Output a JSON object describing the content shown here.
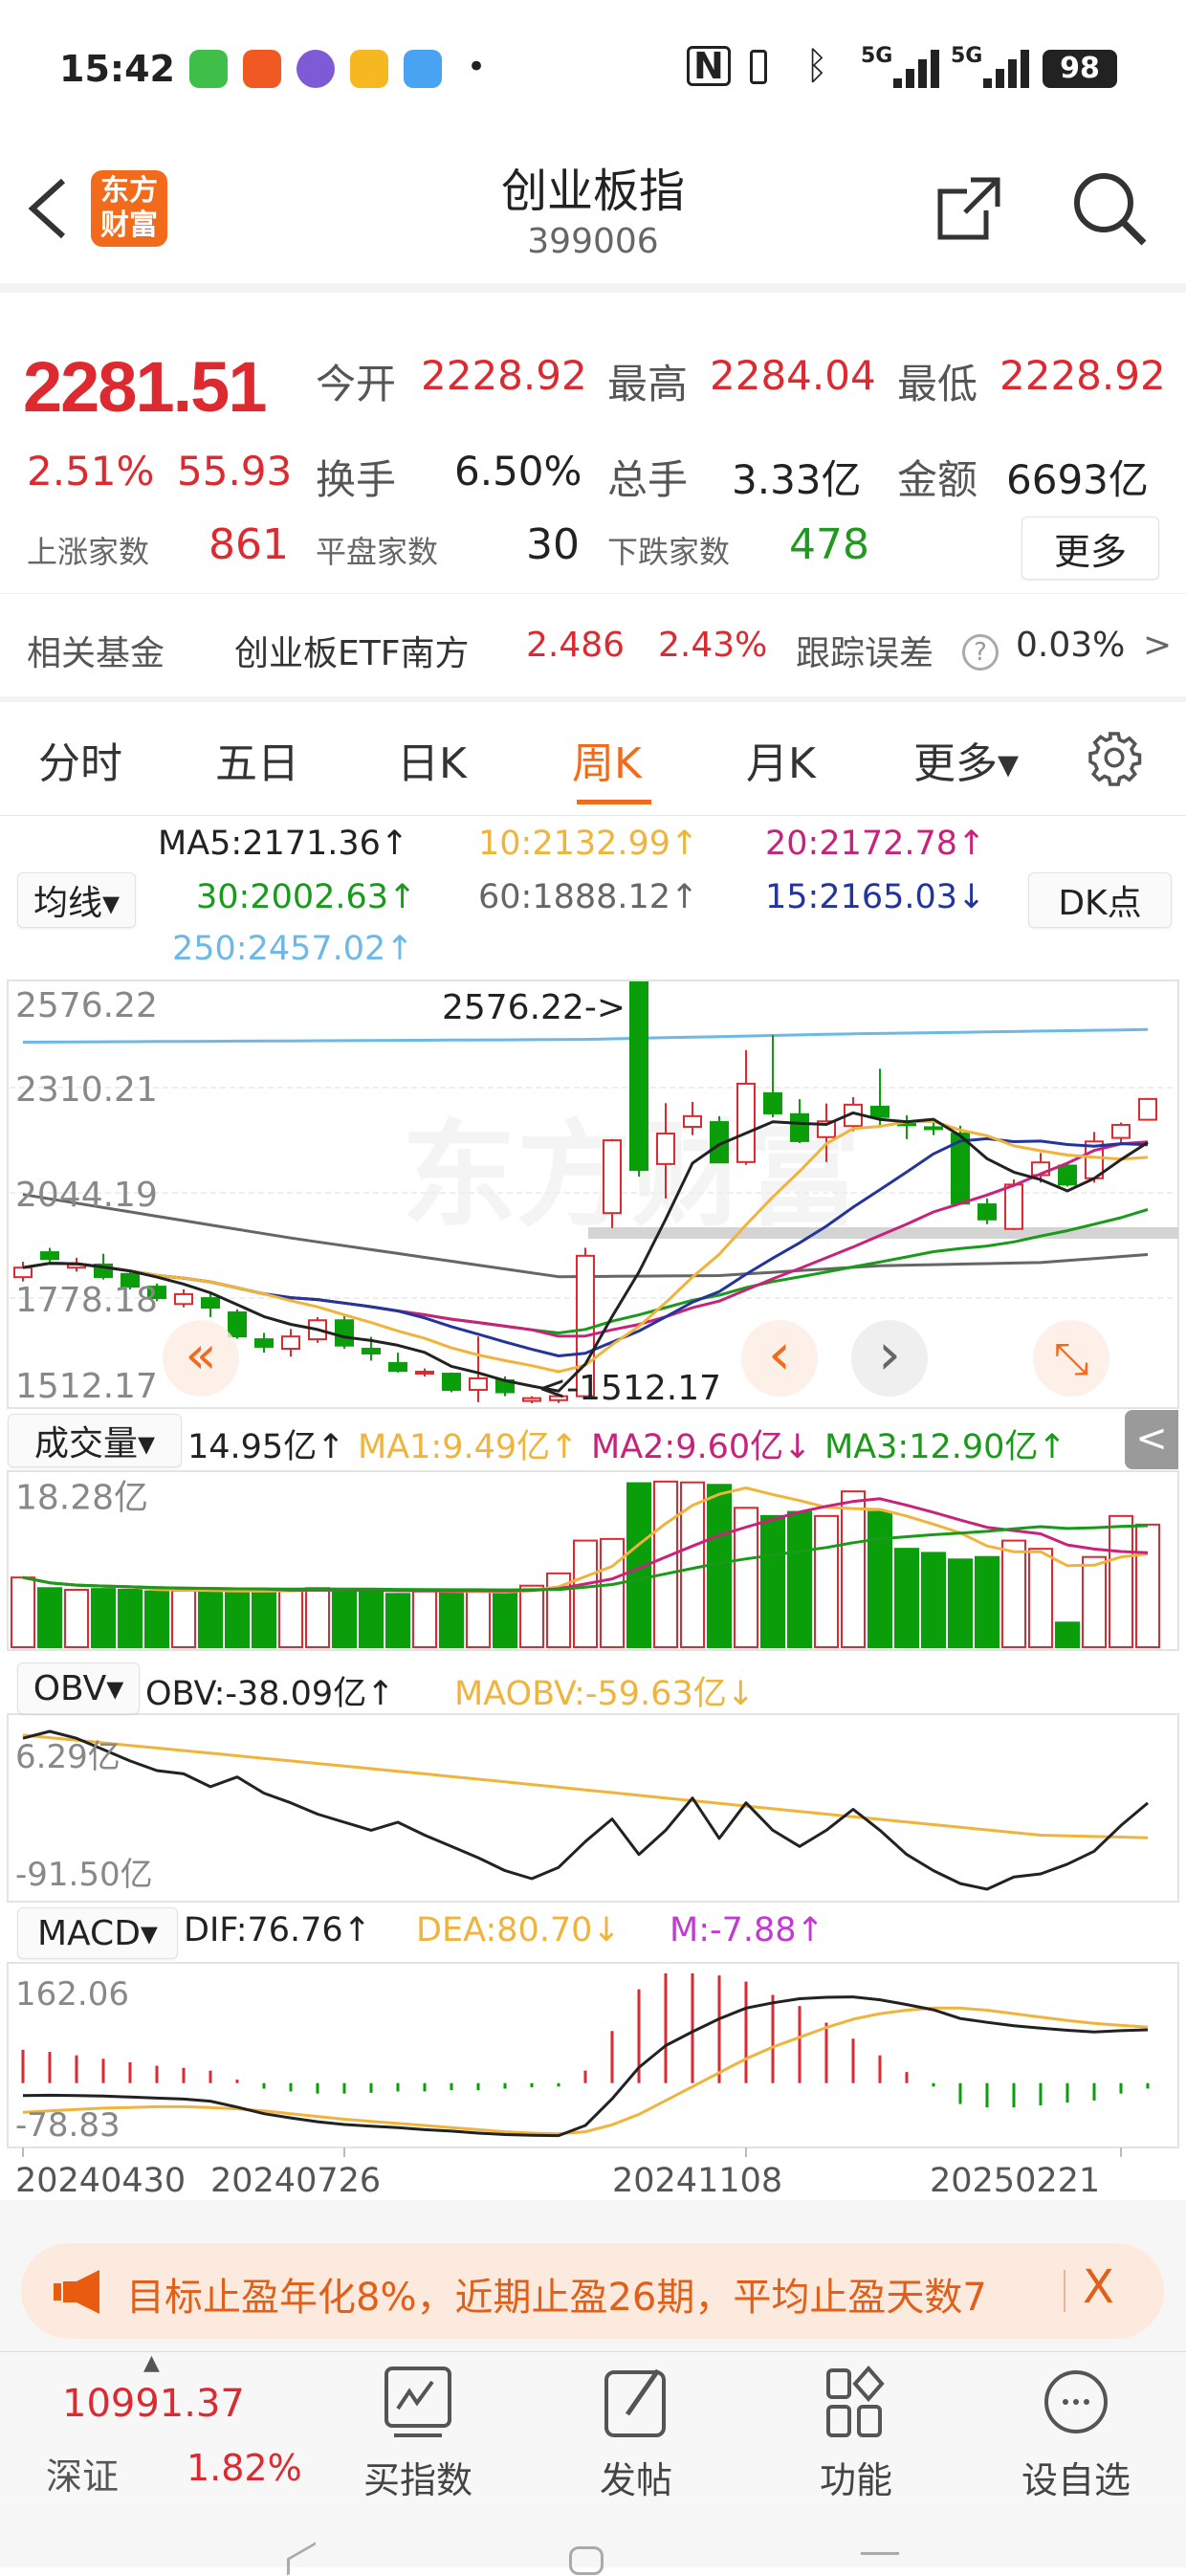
{
  "status_bar": {
    "time": "15:42",
    "network": "5G",
    "network2": "5G",
    "battery": "98",
    "nfc_icon": "N",
    "dot": "•"
  },
  "header": {
    "back_icon": "chevron-left",
    "logo_text": "东方财富",
    "title": "创业板指",
    "code": "399006",
    "share_icon": "share",
    "search_icon": "search"
  },
  "quote": {
    "price": "2281.51",
    "change_pct": "2.51%",
    "change": "55.93",
    "fields": [
      {
        "label": "今开",
        "value": "2228.92"
      },
      {
        "label": "最高",
        "value": "2284.04"
      },
      {
        "label": "最低",
        "value": "2228.92"
      },
      {
        "label": "换手",
        "value": "6.50%"
      },
      {
        "label": "总手",
        "value": "3.33亿"
      },
      {
        "label": "金额",
        "value": "6693亿"
      }
    ],
    "breadth": [
      {
        "label": "上涨家数",
        "value": "861"
      },
      {
        "label": "平盘家数",
        "value": "30"
      },
      {
        "label": "下跌家数",
        "value": "478"
      }
    ],
    "more_button": "更多"
  },
  "fund": {
    "label": "相关基金",
    "name": "创业板ETF南方",
    "price": "2.486",
    "pct": "2.43%",
    "tracking_label": "跟踪误差",
    "help_icon": "?",
    "tracking_value": "0.03%",
    "arrow": ">"
  },
  "tabs": [
    {
      "label": "分时",
      "active": false
    },
    {
      "label": "五日",
      "active": false
    },
    {
      "label": "日K",
      "active": false
    },
    {
      "label": "周K",
      "active": true
    },
    {
      "label": "月K",
      "active": false
    },
    {
      "label": "更多▾",
      "active": false
    }
  ],
  "ma_legend": {
    "selector": "均线▾",
    "dk_button": "DK点",
    "items": [
      {
        "text": "MA5:2171.36↑",
        "color": "#222222"
      },
      {
        "text": "10:2132.99↑",
        "color": "#f0b43c"
      },
      {
        "text": "20:2172.78↑",
        "color": "#c8237c"
      },
      {
        "text": "30:2002.63↑",
        "color": "#1a9a1a"
      },
      {
        "text": "60:1888.12↑",
        "color": "#666666"
      },
      {
        "text": "15:2165.03↓",
        "color": "#23359c"
      },
      {
        "text": "250:2457.02↑",
        "color": "#6cb8e6"
      }
    ]
  },
  "volume_legend": {
    "selector": "成交量▾",
    "value": "14.95亿↑",
    "ma1": "MA1:9.49亿↑",
    "ma2": "MA2:9.60亿↓",
    "ma3": "MA3:12.90亿↑",
    "collapse_icon": "<"
  },
  "obv_legend": {
    "selector": "OBV▾",
    "obv": "OBV:-38.09亿↑",
    "maobv": "MAOBV:-59.63亿↓"
  },
  "macd_legend": {
    "selector": "MACD▾",
    "dif": "DIF:76.76↑",
    "dea": "DEA:80.70↓",
    "m": "M:-7.88↑"
  },
  "chart_nav": {
    "first": "«",
    "prev": "‹",
    "next": "›",
    "expand": "⤡"
  },
  "watermark": "东方财富",
  "colors": {
    "up": "#dd2a30",
    "down": "#0a9e0a",
    "accent": "#f26b1d",
    "ma5": "#222222",
    "ma10": "#f0b43c",
    "ma20": "#c8237c",
    "ma30": "#1a9a1a",
    "ma60": "#666666",
    "ma15": "#23359c",
    "ma250": "#6cb8e6"
  },
  "chart_data": [
    {
      "type": "candlestick",
      "period": "weekly",
      "y_ticks": [
        "2576.22",
        "2310.21",
        "2044.19",
        "1778.18",
        "1512.17"
      ],
      "ylim": [
        1512.17,
        2576.22
      ],
      "high_annotation": "2576.22->",
      "low_annotation": "<-1512.17",
      "x_ticks": [
        {
          "index": 0,
          "label": "20240430"
        },
        {
          "index": 12,
          "label": "20240726"
        },
        {
          "index": 27,
          "label": "20241108"
        },
        {
          "index": 41,
          "label": "20250221"
        }
      ],
      "ohlc": [
        [
          1831,
          1870,
          1820,
          1855
        ],
        [
          1894,
          1905,
          1870,
          1877
        ],
        [
          1855,
          1880,
          1845,
          1863
        ],
        [
          1863,
          1890,
          1825,
          1831
        ],
        [
          1839,
          1850,
          1800,
          1807
        ],
        [
          1807,
          1815,
          1770,
          1778
        ],
        [
          1763,
          1800,
          1755,
          1788
        ],
        [
          1778,
          1790,
          1730,
          1754
        ],
        [
          1742,
          1750,
          1675,
          1681
        ],
        [
          1674,
          1690,
          1640,
          1655
        ],
        [
          1650,
          1700,
          1630,
          1681
        ],
        [
          1674,
          1730,
          1665,
          1722
        ],
        [
          1722,
          1735,
          1650,
          1658
        ],
        [
          1650,
          1680,
          1620,
          1638
        ],
        [
          1614,
          1640,
          1590,
          1594
        ],
        [
          1590,
          1600,
          1580,
          1592
        ],
        [
          1587,
          1590,
          1540,
          1546
        ],
        [
          1546,
          1681,
          1515,
          1575
        ],
        [
          1570,
          1580,
          1530,
          1540
        ],
        [
          1518,
          1530,
          1512.17,
          1525
        ],
        [
          1520,
          1535,
          1513,
          1530
        ],
        [
          1530,
          1905,
          1525,
          1885
        ],
        [
          1993,
          2180,
          1955,
          2177
        ],
        [
          2576.22,
          2576.22,
          2085,
          2102
        ],
        [
          2117,
          2271,
          2030,
          2194
        ],
        [
          2211,
          2274,
          2190,
          2238
        ],
        [
          2223,
          2238,
          2120,
          2121
        ],
        [
          2122,
          2405,
          2115,
          2320
        ],
        [
          2296,
          2443,
          2235,
          2245
        ],
        [
          2243,
          2281,
          2170,
          2175
        ],
        [
          2185,
          2270,
          2122,
          2225
        ],
        [
          2213,
          2286,
          2200,
          2267
        ],
        [
          2262,
          2358,
          2210,
          2236
        ],
        [
          2223,
          2240,
          2180,
          2215
        ],
        [
          2210,
          2225,
          2190,
          2208
        ],
        [
          2194,
          2214,
          2015,
          2017
        ],
        [
          2015,
          2030,
          1965,
          1977
        ],
        [
          1953,
          2078,
          1950,
          2065
        ],
        [
          2089,
          2145,
          2070,
          2121
        ],
        [
          2113,
          2117,
          2060,
          2065
        ],
        [
          2081,
          2198,
          2070,
          2174
        ],
        [
          2183,
          2222,
          2170,
          2216
        ],
        [
          2228.92,
          2284.04,
          2228.92,
          2281.51
        ]
      ],
      "ma60_points": [
        [
          0,
          2040
        ],
        [
          10,
          1930
        ],
        [
          20,
          1832
        ],
        [
          26,
          1835
        ],
        [
          32,
          1860
        ],
        [
          38,
          1868
        ],
        [
          42,
          1888.12
        ]
      ],
      "ma250_points": [
        [
          0,
          2425
        ],
        [
          21,
          2432
        ],
        [
          30,
          2445
        ],
        [
          42,
          2457.02
        ]
      ]
    },
    {
      "type": "bar",
      "name": "成交量",
      "unit": "亿",
      "y_ticks": [
        "18.28亿"
      ],
      "ylim": [
        0,
        21
      ],
      "values": [
        8.5,
        7.2,
        7.0,
        7.1,
        7.0,
        6.8,
        6.9,
        6.8,
        6.8,
        6.9,
        7.0,
        7.2,
        7.0,
        7.0,
        6.5,
        6.8,
        6.7,
        7.0,
        6.6,
        7.5,
        9.0,
        13.0,
        13.2,
        20.0,
        20.2,
        20.1,
        19.8,
        17.0,
        16.0,
        16.5,
        16.0,
        19.0,
        16.5,
        12.0,
        11.5,
        10.7,
        11.0,
        13.0,
        12.0,
        3.0,
        11.0,
        16.0,
        14.95
      ]
    },
    {
      "type": "line",
      "name": "OBV",
      "unit": "亿",
      "y_ticks": [
        "6.29亿",
        "-91.50亿"
      ],
      "ylim": [
        -91.5,
        6.29
      ],
      "obv": [
        2,
        6.29,
        2,
        -5,
        -12,
        -18,
        -20,
        -28,
        -22,
        -32,
        -38,
        -45,
        -50,
        -55,
        -50,
        -58,
        -65,
        -72,
        -80,
        -85,
        -78,
        -62,
        -48,
        -70,
        -55,
        -35,
        -60,
        -38,
        -55,
        -65,
        -55,
        -42,
        -55,
        -70,
        -80,
        -88,
        -91.5,
        -84,
        -82,
        -76,
        -68,
        -52,
        -38.09
      ],
      "maobv_points": [
        [
          0,
          4
        ],
        [
          15,
          -20
        ],
        [
          30,
          -45
        ],
        [
          38,
          -58
        ],
        [
          42,
          -59.63
        ]
      ]
    },
    {
      "type": "bar+line",
      "name": "MACD",
      "y_ticks": [
        "162.06",
        "-78.83"
      ],
      "ylim": [
        -78.83,
        162.06
      ],
      "m": [
        48,
        45,
        40,
        35,
        30,
        25,
        22,
        18,
        5,
        -8,
        -12,
        -15,
        -15,
        -14,
        -12,
        -12,
        -10,
        -10,
        -8,
        -6,
        -5,
        18,
        75,
        135,
        158,
        158,
        155,
        146,
        127,
        111,
        87,
        64,
        40,
        16,
        -5,
        -30,
        -35,
        -35,
        -32,
        -28,
        -25,
        -15,
        -7.88
      ],
      "dif": [
        -18,
        -17.5,
        -18,
        -18.5,
        -20,
        -21.5,
        -23,
        -26,
        -34.5,
        -44,
        -50,
        -55.5,
        -59.5,
        -62,
        -64,
        -67,
        -69,
        -72,
        -74,
        -75,
        -75.5,
        -61,
        -22.5,
        22.5,
        54,
        74,
        92.5,
        108,
        115.5,
        121.5,
        123.5,
        124,
        120,
        113,
        105.5,
        93,
        87.5,
        82.5,
        79,
        76,
        73.5,
        75.5,
        76.76
      ],
      "dea": [
        -42,
        -40,
        -38,
        -36,
        -35,
        -34,
        -34,
        -35,
        -37,
        -40,
        -44,
        -48,
        -52,
        -55,
        -58,
        -61,
        -64,
        -67,
        -70,
        -72,
        -73,
        -70,
        -60,
        -45,
        -25,
        -5,
        15,
        35,
        52,
        66,
        80,
        92,
        100,
        105,
        108,
        108,
        105,
        100,
        95,
        90,
        86,
        83,
        80.7
      ]
    }
  ],
  "banner": {
    "icon": "megaphone",
    "text": "目标止盈年化8%，近期止盈26期，平均止盈天数7",
    "close": "X"
  },
  "bottom_nav": {
    "index_value": "10991.37",
    "index_name": "深证",
    "index_pct": "1.82%",
    "up_arrow": "▲",
    "items": [
      {
        "label": "买指数",
        "icon": "chart-trend"
      },
      {
        "label": "发帖",
        "icon": "edit"
      },
      {
        "label": "功能",
        "icon": "grid"
      },
      {
        "label": "设自选",
        "icon": "more-circle"
      }
    ]
  }
}
